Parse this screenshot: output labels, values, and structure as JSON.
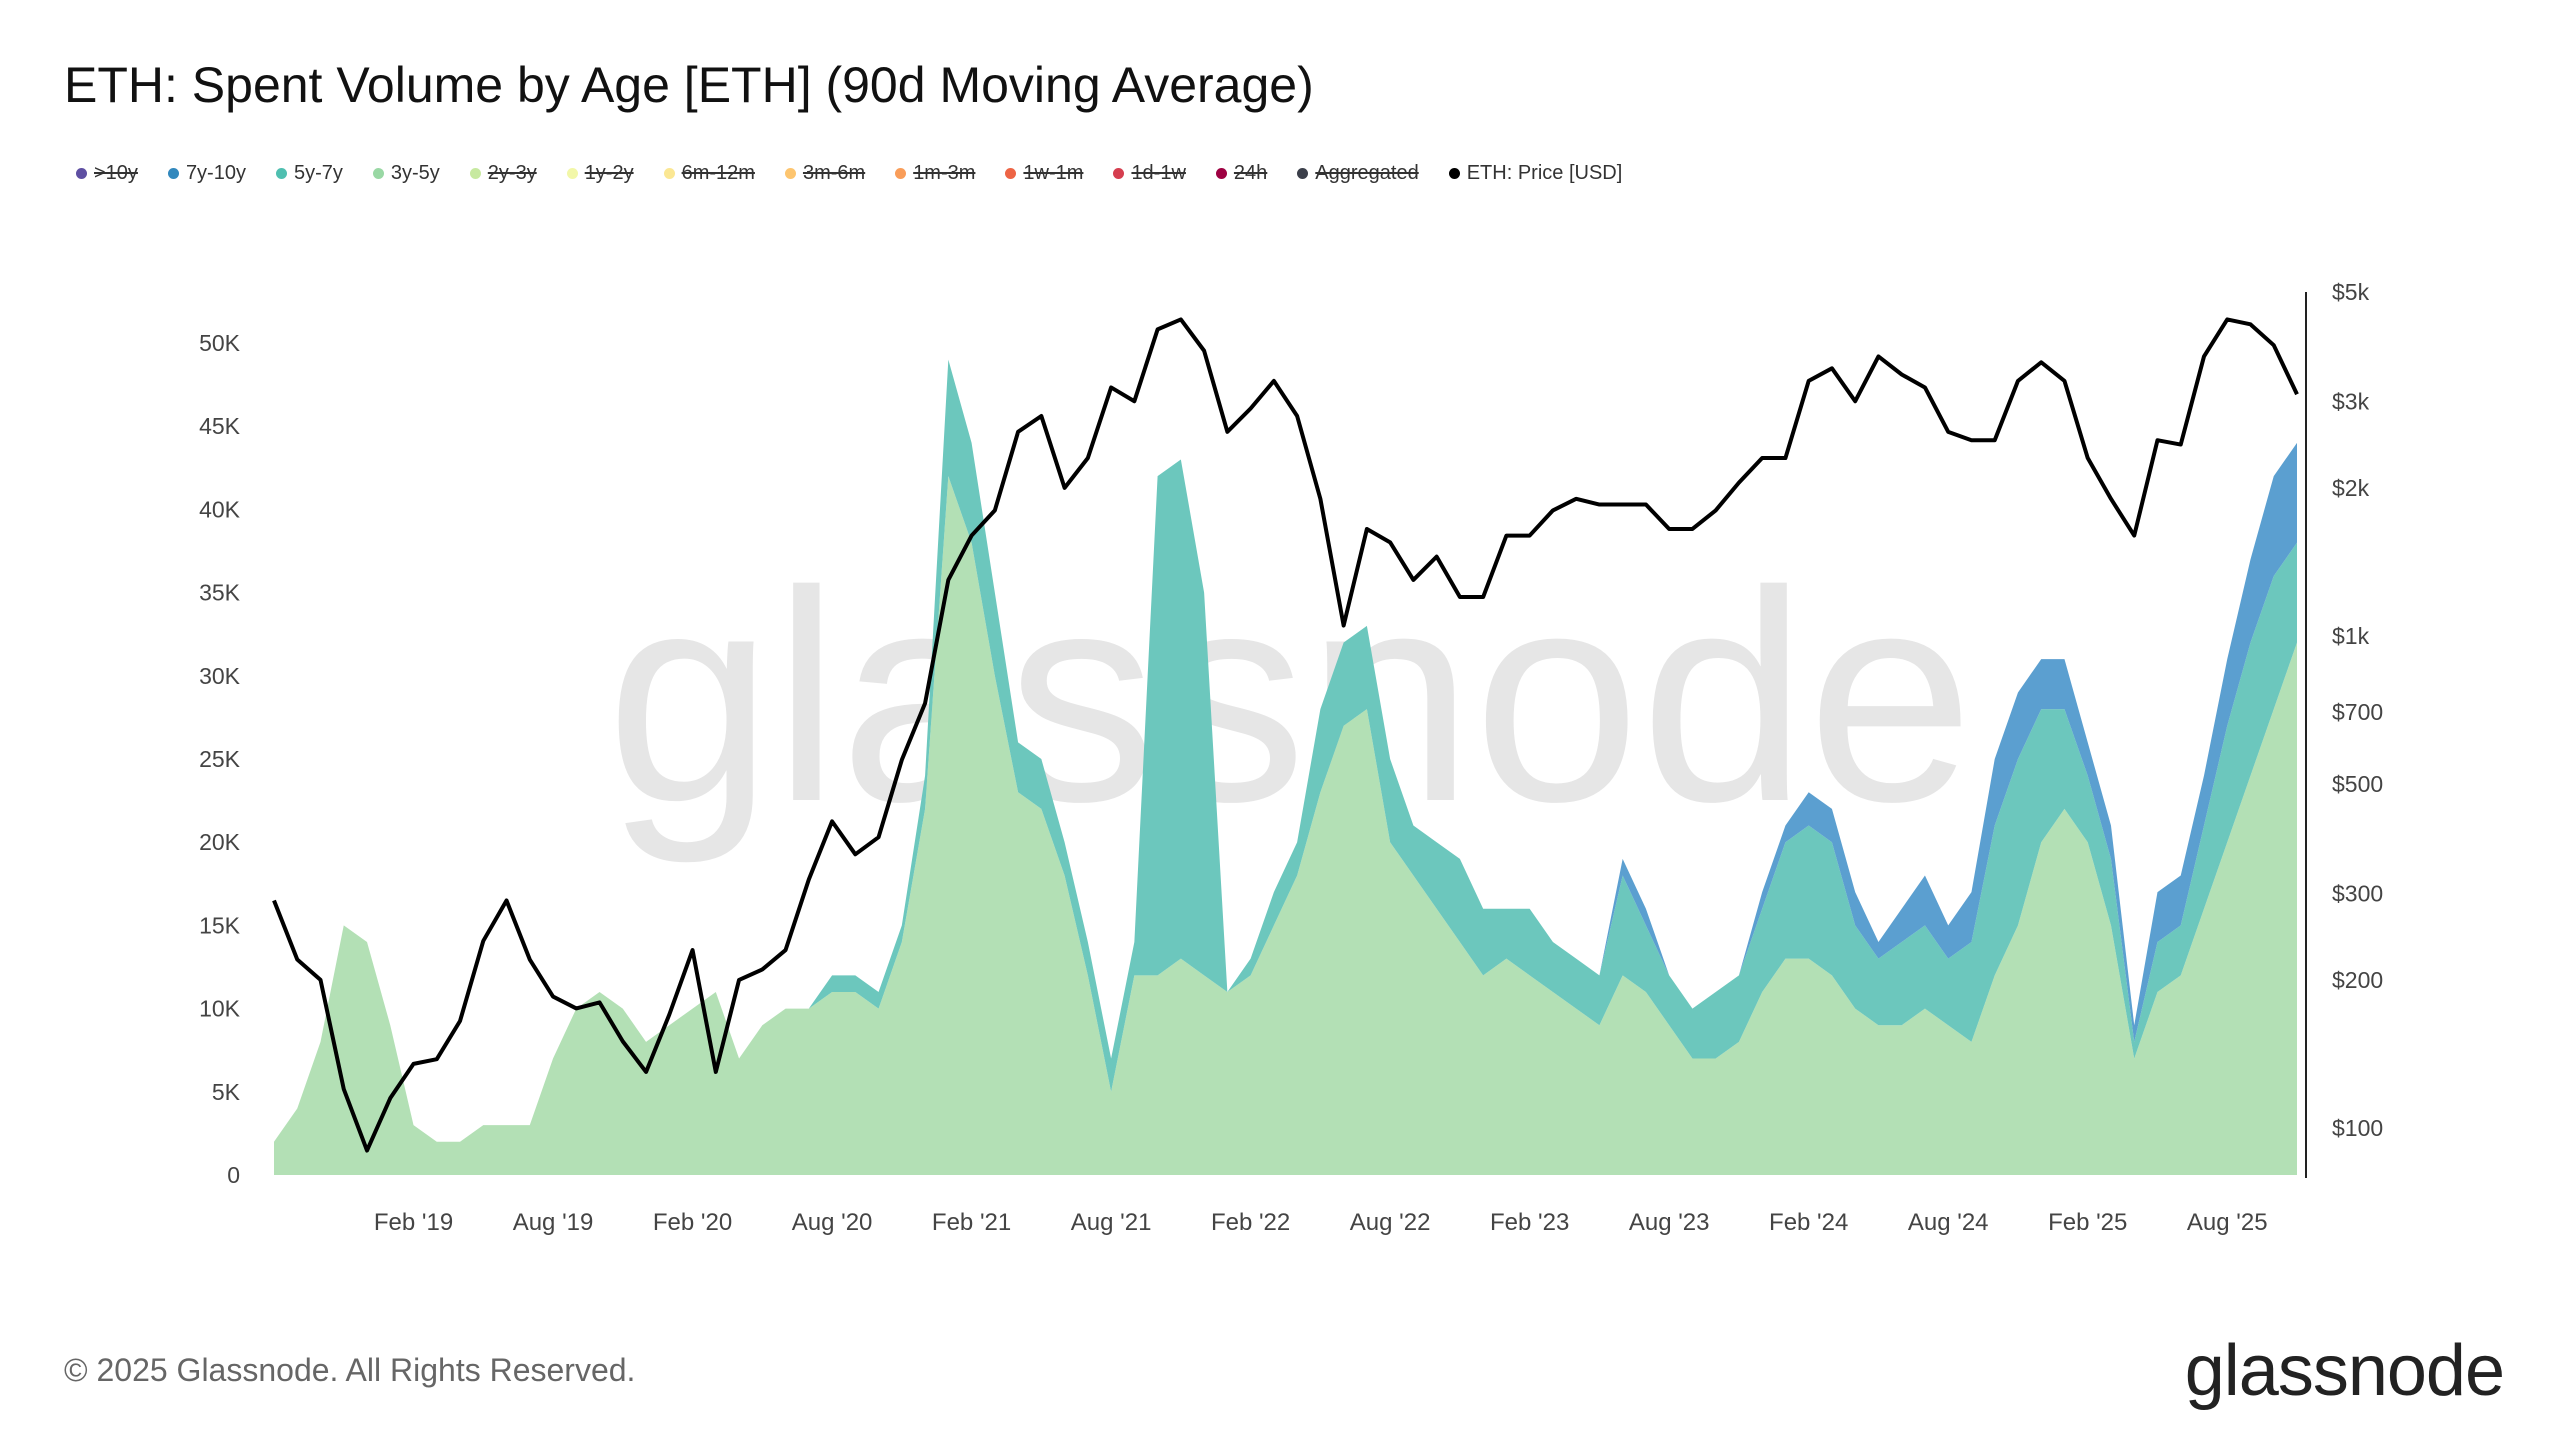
{
  "title": "ETH: Spent Volume by Age [ETH] (90d Moving Average)",
  "legend": [
    {
      "label": ">10y",
      "color": "#5e4fa2",
      "active": false
    },
    {
      "label": "7y-10y",
      "color": "#3288bd",
      "active": true
    },
    {
      "label": "5y-7y",
      "color": "#4fbfb0",
      "active": true
    },
    {
      "label": "3y-5y",
      "color": "#99d8a4",
      "active": true
    },
    {
      "label": "2y-3y",
      "color": "#c7e9a0",
      "active": false
    },
    {
      "label": "1y-2y",
      "color": "#f2f7a8",
      "active": false
    },
    {
      "label": "6m-12m",
      "color": "#fbe793",
      "active": false
    },
    {
      "label": "3m-6m",
      "color": "#fdc56f",
      "active": false
    },
    {
      "label": "1m-3m",
      "color": "#f99d59",
      "active": false
    },
    {
      "label": "1w-1m",
      "color": "#ed6445",
      "active": false
    },
    {
      "label": "1d-1w",
      "color": "#d53e4f",
      "active": false
    },
    {
      "label": "24h",
      "color": "#9e0142",
      "active": false
    },
    {
      "label": "Aggregated",
      "color": "#3b3f4a",
      "active": false
    },
    {
      "label": "ETH: Price [USD]",
      "color": "#000000",
      "active": true
    }
  ],
  "footer": "© 2025 Glassnode. All Rights Reserved.",
  "logo": "glassnode",
  "chart_data": {
    "type": "area",
    "x_start": "2018-08",
    "x_end": "2025-11",
    "x_step": "month",
    "x_ticks": [
      "Feb '19",
      "Aug '19",
      "Feb '20",
      "Aug '20",
      "Feb '21",
      "Aug '21",
      "Feb '22",
      "Aug '22",
      "Feb '23",
      "Aug '23",
      "Feb '24",
      "Aug '24",
      "Feb '25",
      "Aug '25"
    ],
    "y_left": {
      "ticks": [
        "0",
        "5K",
        "10K",
        "15K",
        "20K",
        "25K",
        "30K",
        "35K",
        "40K",
        "45K",
        "50K"
      ],
      "range": [
        0,
        50000
      ],
      "unit": "ETH"
    },
    "y_right": {
      "ticks": [
        "$100",
        "$200",
        "$300",
        "$500",
        "$700",
        "$1k",
        "$2k",
        "$3k",
        "$5k"
      ],
      "tick_values": [
        100,
        200,
        300,
        500,
        700,
        1000,
        2000,
        3000,
        5000
      ],
      "scale": "log"
    },
    "stacked": true,
    "series": [
      {
        "name": "3y-5y",
        "color": "#b3e0b5",
        "values": [
          2,
          4,
          8,
          15,
          14,
          9,
          3,
          2,
          2,
          3,
          3,
          3,
          7,
          10,
          11,
          10,
          8,
          9,
          10,
          11,
          7,
          9,
          10,
          10,
          11,
          11,
          10,
          14,
          22,
          42,
          38,
          30,
          23,
          22,
          18,
          12,
          5,
          12,
          12,
          13,
          12,
          11,
          12,
          15,
          18,
          23,
          27,
          28,
          20,
          18,
          16,
          14,
          12,
          13,
          12,
          11,
          10,
          9,
          12,
          11,
          9,
          7,
          7,
          8,
          11,
          13,
          13,
          12,
          10,
          9,
          9,
          10,
          9,
          8,
          12,
          15,
          20,
          22,
          20,
          15,
          7,
          11,
          12,
          16,
          20,
          24,
          28,
          32
        ]
      },
      {
        "name": "5y-7y",
        "color": "#6cc7bd",
        "values": [
          0,
          0,
          0,
          0,
          0,
          0,
          0,
          0,
          0,
          0,
          0,
          0,
          0,
          0,
          0,
          0,
          0,
          0,
          0,
          0,
          0,
          0,
          0,
          0,
          1,
          1,
          1,
          1,
          2,
          7,
          6,
          5,
          3,
          3,
          2,
          2,
          2,
          2,
          30,
          30,
          23,
          0,
          1,
          2,
          2,
          5,
          5,
          5,
          5,
          3,
          4,
          5,
          4,
          3,
          4,
          3,
          3,
          3,
          6,
          4,
          3,
          3,
          4,
          4,
          5,
          7,
          8,
          8,
          5,
          4,
          5,
          5,
          4,
          6,
          9,
          10,
          8,
          6,
          4,
          4,
          1,
          3,
          3,
          5,
          7,
          8,
          8,
          6
        ]
      },
      {
        "name": "7y-10y",
        "color": "#5b9fd0",
        "values": [
          0,
          0,
          0,
          0,
          0,
          0,
          0,
          0,
          0,
          0,
          0,
          0,
          0,
          0,
          0,
          0,
          0,
          0,
          0,
          0,
          0,
          0,
          0,
          0,
          0,
          0,
          0,
          0,
          0,
          0,
          0,
          0,
          0,
          0,
          0,
          0,
          0,
          0,
          0,
          0,
          0,
          0,
          0,
          0,
          0,
          0,
          0,
          0,
          0,
          0,
          0,
          0,
          0,
          0,
          0,
          0,
          0,
          0,
          1,
          1,
          0,
          0,
          0,
          0,
          1,
          1,
          2,
          2,
          2,
          1,
          2,
          3,
          2,
          3,
          4,
          4,
          3,
          3,
          2,
          2,
          1,
          3,
          3,
          3,
          4,
          5,
          6,
          6
        ]
      },
      {
        "name": "ETH: Price [USD]",
        "axis": "right",
        "color": "#000000",
        "values": [
          290,
          220,
          200,
          120,
          90,
          115,
          135,
          138,
          165,
          240,
          290,
          220,
          185,
          175,
          180,
          150,
          130,
          170,
          230,
          130,
          200,
          210,
          230,
          320,
          420,
          360,
          390,
          560,
          730,
          1300,
          1600,
          1800,
          2600,
          2800,
          2000,
          2300,
          3200,
          3000,
          4200,
          4400,
          3800,
          2600,
          2900,
          3300,
          2800,
          1900,
          1050,
          1650,
          1550,
          1300,
          1450,
          1200,
          1200,
          1600,
          1600,
          1800,
          1900,
          1850,
          1850,
          1850,
          1650,
          1650,
          1800,
          2050,
          2300,
          2300,
          3300,
          3500,
          3000,
          3700,
          3400,
          3200,
          2600,
          2500,
          2500,
          3300,
          3600,
          3300,
          2300,
          1900,
          1600,
          2500,
          2450,
          3700,
          4400,
          4300,
          3900,
          3100
        ]
      }
    ]
  }
}
